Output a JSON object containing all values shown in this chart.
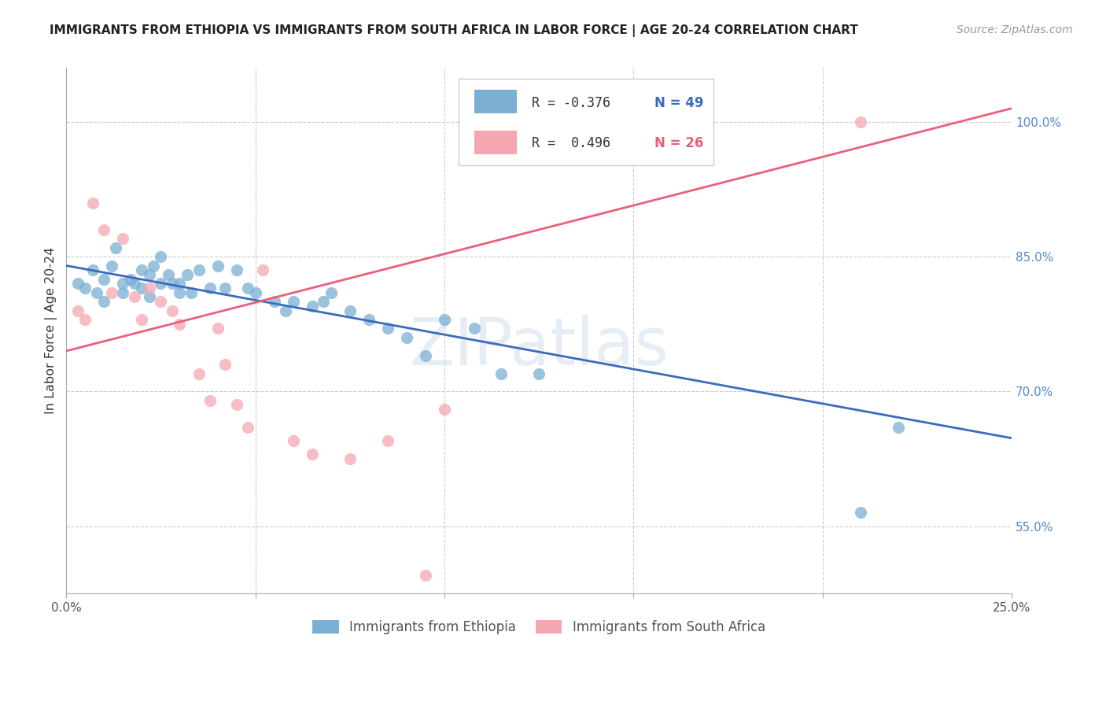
{
  "title": "IMMIGRANTS FROM ETHIOPIA VS IMMIGRANTS FROM SOUTH AFRICA IN LABOR FORCE | AGE 20-24 CORRELATION CHART",
  "source": "Source: ZipAtlas.com",
  "ylabel": "In Labor Force | Age 20-24",
  "xlim": [
    0.0,
    0.25
  ],
  "ylim": [
    0.475,
    1.06
  ],
  "yticks_right": [
    0.55,
    0.7,
    0.85,
    1.0
  ],
  "yticklabels_right": [
    "55.0%",
    "70.0%",
    "85.0%",
    "100.0%"
  ],
  "blue_color": "#7BAFD4",
  "pink_color": "#F4A7B0",
  "blue_line_color": "#3A6BBF",
  "pink_line_color": "#E8607A",
  "legend_r_blue": "R = -0.376",
  "legend_n_blue": "N = 49",
  "legend_r_pink": "R =  0.496",
  "legend_n_pink": "N = 26",
  "label_blue": "Immigrants from Ethiopia",
  "label_pink": "Immigrants from South Africa",
  "blue_line_y0": 0.84,
  "blue_line_y1": 0.648,
  "pink_line_y0": 0.745,
  "pink_line_y1": 1.015,
  "blue_x": [
    0.003,
    0.005,
    0.007,
    0.008,
    0.01,
    0.01,
    0.012,
    0.013,
    0.015,
    0.015,
    0.017,
    0.018,
    0.02,
    0.02,
    0.022,
    0.022,
    0.023,
    0.025,
    0.025,
    0.027,
    0.028,
    0.03,
    0.03,
    0.032,
    0.033,
    0.035,
    0.038,
    0.04,
    0.042,
    0.045,
    0.048,
    0.05,
    0.055,
    0.058,
    0.06,
    0.065,
    0.068,
    0.07,
    0.075,
    0.08,
    0.085,
    0.09,
    0.095,
    0.1,
    0.108,
    0.115,
    0.125,
    0.21,
    0.22
  ],
  "blue_y": [
    0.82,
    0.815,
    0.835,
    0.81,
    0.825,
    0.8,
    0.84,
    0.86,
    0.82,
    0.81,
    0.825,
    0.82,
    0.835,
    0.815,
    0.83,
    0.805,
    0.84,
    0.85,
    0.82,
    0.83,
    0.82,
    0.82,
    0.81,
    0.83,
    0.81,
    0.835,
    0.815,
    0.84,
    0.815,
    0.835,
    0.815,
    0.81,
    0.8,
    0.79,
    0.8,
    0.795,
    0.8,
    0.81,
    0.79,
    0.78,
    0.77,
    0.76,
    0.74,
    0.78,
    0.77,
    0.72,
    0.72,
    0.565,
    0.66
  ],
  "pink_x": [
    0.003,
    0.005,
    0.007,
    0.01,
    0.012,
    0.015,
    0.018,
    0.02,
    0.022,
    0.025,
    0.028,
    0.03,
    0.035,
    0.038,
    0.04,
    0.042,
    0.045,
    0.048,
    0.052,
    0.06,
    0.065,
    0.075,
    0.085,
    0.095,
    0.1,
    0.21
  ],
  "pink_y": [
    0.79,
    0.78,
    0.91,
    0.88,
    0.81,
    0.87,
    0.805,
    0.78,
    0.815,
    0.8,
    0.79,
    0.775,
    0.72,
    0.69,
    0.77,
    0.73,
    0.685,
    0.66,
    0.835,
    0.645,
    0.63,
    0.625,
    0.645,
    0.495,
    0.68,
    1.0
  ],
  "watermark": "ZIPatlas",
  "background_color": "#FFFFFF",
  "grid_color": "#CCCCCC"
}
